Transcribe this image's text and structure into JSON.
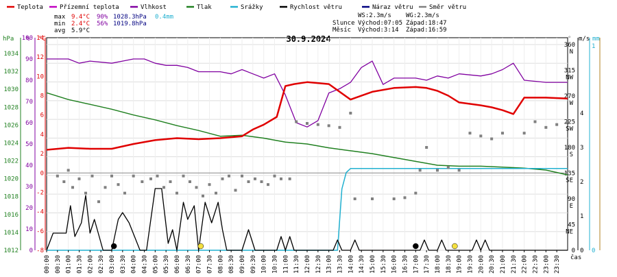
{
  "chart_data": {
    "type": "line",
    "title": "30.9.2024",
    "legend": [
      {
        "key": "temp",
        "label": "Teplota",
        "color": "#e00000"
      },
      {
        "key": "feel",
        "label": "Přízemní teplota",
        "color": "#c000c0"
      },
      {
        "key": "hum",
        "label": "Vlhkost",
        "color": "#8000a0"
      },
      {
        "key": "press",
        "label": "Tlak",
        "color": "#208020"
      },
      {
        "key": "rain",
        "label": "Srážky",
        "color": "#20b0d0"
      },
      {
        "key": "wind",
        "label": "Rychlost větru",
        "color": "#000000"
      },
      {
        "key": "gust",
        "label": "Náraz větru",
        "color": "#000080"
      },
      {
        "key": "dir",
        "label": "Směr větru",
        "color": "#808080"
      }
    ],
    "stats": {
      "rows": [
        "max",
        "min",
        "avg"
      ],
      "temp": [
        "9.4°C",
        "2.4°C",
        "5.9°C"
      ],
      "hum": [
        "90%",
        "56%",
        ""
      ],
      "press": [
        "1028.3hPa",
        "1019.8hPa",
        ""
      ],
      "rain": [
        "0.4mm",
        "",
        ""
      ]
    },
    "info": {
      "ws": "WS:2.3m/s",
      "wg": "WG:2.3m/s",
      "sun_label": "Slunce",
      "sunrise": "Východ:07:05",
      "sunset": "Západ:18:47",
      "moon_label": "Měsíc",
      "moonrise": "Východ:3:14",
      "moonset": "Západ:16:59"
    },
    "axes": {
      "hpa": {
        "unit": "hPa",
        "ticks": [
          "1034",
          "1032",
          "1030",
          "1028",
          "1026",
          "1024",
          "1022",
          "1020",
          "1018",
          "1016",
          "1014",
          "1012"
        ],
        "color": "#208020"
      },
      "pct": {
        "unit": "%",
        "ticks": [
          "100",
          "90",
          "80",
          "70",
          "60",
          "50",
          "40",
          "30",
          "20",
          "10",
          "0"
        ],
        "color": "#8000a0"
      },
      "degc": {
        "unit": "°C",
        "ticks": [
          "14",
          "12",
          "10",
          "8",
          "6",
          "4",
          "2",
          "0",
          "-2",
          "-4",
          "-6",
          "-8"
        ],
        "color": "#e00000"
      },
      "compass": {
        "ticks": [
          "360\nN",
          "315\nNW",
          "270\nW",
          "225\nSW",
          "180\nS",
          "135\nSE",
          "90\nE",
          "45\nNE",
          "0"
        ],
        "color": "#808080"
      },
      "ms": {
        "unit": "m/s",
        "ticks": [
          "4",
          "3",
          "2",
          "1",
          "0"
        ],
        "color": "#000000"
      },
      "mm": {
        "unit": "mm",
        "ticks": [
          "1",
          "0"
        ],
        "color": "#20b0d0"
      },
      "x_ticks": [
        "00:00",
        "00:30",
        "01:00",
        "01:30",
        "02:00",
        "02:30",
        "03:00",
        "03:30",
        "04:00",
        "04:30",
        "05:00",
        "05:30",
        "06:00",
        "06:30",
        "07:00",
        "07:30",
        "08:00",
        "08:30",
        "09:00",
        "09:30",
        "10:00",
        "10:30",
        "11:00",
        "11:30",
        "12:00",
        "12:30",
        "13:00",
        "13:30",
        "14:00",
        "14:30",
        "15:00",
        "15:30",
        "16:00",
        "16:30",
        "17:00",
        "17:30",
        "18:00",
        "18:30",
        "19:00",
        "19:30",
        "20:00",
        "20:30",
        "21:00",
        "21:30",
        "22:00",
        "22:30",
        "23:00",
        "23:30"
      ],
      "x_label": "čas"
    },
    "temp_ylim": [
      -8,
      14
    ],
    "x_range_h": [
      0,
      24
    ],
    "series": {
      "temp_c": [
        [
          0,
          2.4
        ],
        [
          1,
          2.6
        ],
        [
          2,
          2.5
        ],
        [
          3,
          2.5
        ],
        [
          4,
          3.0
        ],
        [
          5,
          3.4
        ],
        [
          6,
          3.6
        ],
        [
          7,
          3.5
        ],
        [
          8,
          3.6
        ],
        [
          9,
          3.8
        ],
        [
          9.5,
          4.5
        ],
        [
          10,
          5.0
        ],
        [
          10.6,
          5.8
        ],
        [
          11,
          9.0
        ],
        [
          11.4,
          9.2
        ],
        [
          12,
          9.4
        ],
        [
          13,
          9.2
        ],
        [
          14,
          7.6
        ],
        [
          15,
          8.4
        ],
        [
          16,
          8.8
        ],
        [
          17,
          8.9
        ],
        [
          17.5,
          8.8
        ],
        [
          18,
          8.5
        ],
        [
          18.5,
          8.0
        ],
        [
          19,
          7.3
        ],
        [
          20,
          7.0
        ],
        [
          20.5,
          6.8
        ],
        [
          21,
          6.5
        ],
        [
          21.5,
          6.1
        ],
        [
          22,
          7.8
        ],
        [
          23,
          7.8
        ],
        [
          24,
          7.7
        ]
      ],
      "hum_pct": [
        [
          0,
          90
        ],
        [
          1,
          90
        ],
        [
          1.5,
          88
        ],
        [
          2,
          89
        ],
        [
          3,
          88
        ],
        [
          3.5,
          89
        ],
        [
          4,
          90
        ],
        [
          4.5,
          90
        ],
        [
          5,
          88
        ],
        [
          5.5,
          87
        ],
        [
          6,
          87
        ],
        [
          6.5,
          86
        ],
        [
          7,
          84
        ],
        [
          8,
          84
        ],
        [
          8.5,
          83
        ],
        [
          9,
          85
        ],
        [
          9.5,
          83
        ],
        [
          10,
          81
        ],
        [
          10.5,
          83
        ],
        [
          11,
          73
        ],
        [
          11.5,
          60
        ],
        [
          12,
          58
        ],
        [
          12.5,
          61
        ],
        [
          13,
          74
        ],
        [
          13.5,
          76
        ],
        [
          14,
          79
        ],
        [
          14.5,
          86
        ],
        [
          15,
          89
        ],
        [
          15.5,
          78
        ],
        [
          16,
          81
        ],
        [
          17,
          81
        ],
        [
          17.5,
          80
        ],
        [
          18,
          82
        ],
        [
          18.5,
          81
        ],
        [
          19,
          83
        ],
        [
          20,
          82
        ],
        [
          20.5,
          83
        ],
        [
          21,
          85
        ],
        [
          21.5,
          88
        ],
        [
          22,
          80
        ],
        [
          23,
          79
        ],
        [
          24,
          79
        ]
      ],
      "press_hpa": [
        [
          0,
          1028.3
        ],
        [
          1,
          1027.6
        ],
        [
          2,
          1027.1
        ],
        [
          3,
          1026.6
        ],
        [
          4,
          1026.0
        ],
        [
          5,
          1025.5
        ],
        [
          6,
          1024.9
        ],
        [
          7,
          1024.4
        ],
        [
          8,
          1023.8
        ],
        [
          9,
          1023.9
        ],
        [
          10,
          1023.6
        ],
        [
          11,
          1023.2
        ],
        [
          12,
          1023.0
        ],
        [
          13,
          1022.6
        ],
        [
          14,
          1022.3
        ],
        [
          15,
          1022.0
        ],
        [
          16,
          1021.6
        ],
        [
          17,
          1021.2
        ],
        [
          18,
          1020.8
        ],
        [
          19,
          1020.7
        ],
        [
          20,
          1020.7
        ],
        [
          21,
          1020.6
        ],
        [
          22,
          1020.5
        ],
        [
          23,
          1020.3
        ],
        [
          24,
          1019.8
        ]
      ],
      "rain_mm": [
        [
          0,
          0
        ],
        [
          13.4,
          0
        ],
        [
          13.6,
          0.3
        ],
        [
          13.8,
          0.38
        ],
        [
          14,
          0.4
        ],
        [
          24,
          0.4
        ]
      ],
      "wind_ms": [
        [
          0,
          0
        ],
        [
          0.3,
          0.5
        ],
        [
          0.7,
          0.5
        ],
        [
          0.9,
          0.5
        ],
        [
          1.1,
          1.3
        ],
        [
          1.3,
          0.4
        ],
        [
          1.6,
          0.8
        ],
        [
          1.8,
          1.6
        ],
        [
          2.0,
          0.5
        ],
        [
          2.2,
          0.9
        ],
        [
          2.6,
          0
        ],
        [
          3.0,
          0
        ],
        [
          3.3,
          0.9
        ],
        [
          3.5,
          1.1
        ],
        [
          3.8,
          0.8
        ],
        [
          4.3,
          0
        ],
        [
          4.6,
          0
        ],
        [
          5.0,
          1.8
        ],
        [
          5.3,
          1.8
        ],
        [
          5.6,
          0.2
        ],
        [
          5.8,
          0.6
        ],
        [
          6.0,
          0
        ],
        [
          6.3,
          1.4
        ],
        [
          6.5,
          0.9
        ],
        [
          6.8,
          1.3
        ],
        [
          7.0,
          0
        ],
        [
          7.3,
          1.4
        ],
        [
          7.6,
          0.8
        ],
        [
          7.9,
          1.4
        ],
        [
          8.1,
          0.6
        ],
        [
          8.3,
          0
        ],
        [
          9.0,
          0
        ],
        [
          9.3,
          0.6
        ],
        [
          9.6,
          0
        ],
        [
          10.6,
          0
        ],
        [
          10.8,
          0.4
        ],
        [
          11.0,
          0
        ],
        [
          11.2,
          0.4
        ],
        [
          11.4,
          0
        ],
        [
          13.2,
          0
        ],
        [
          13.4,
          0.3
        ],
        [
          13.6,
          0
        ],
        [
          14.0,
          0
        ],
        [
          14.2,
          0.3
        ],
        [
          14.4,
          0
        ],
        [
          17.2,
          0
        ],
        [
          17.4,
          0.3
        ],
        [
          17.6,
          0
        ],
        [
          18.0,
          0
        ],
        [
          18.2,
          0.3
        ],
        [
          18.4,
          0
        ],
        [
          19.6,
          0
        ],
        [
          19.8,
          0.3
        ],
        [
          20.0,
          0
        ],
        [
          20.2,
          0.3
        ],
        [
          20.4,
          0
        ],
        [
          24,
          0
        ]
      ],
      "dir_points_deg": [
        [
          0.5,
          130
        ],
        [
          0.8,
          120
        ],
        [
          1.0,
          140
        ],
        [
          1.2,
          110
        ],
        [
          1.5,
          125
        ],
        [
          1.8,
          100
        ],
        [
          2.1,
          130
        ],
        [
          2.4,
          85
        ],
        [
          2.7,
          110
        ],
        [
          3.0,
          130
        ],
        [
          3.3,
          115
        ],
        [
          3.6,
          100
        ],
        [
          4.0,
          130
        ],
        [
          4.4,
          120
        ],
        [
          4.8,
          125
        ],
        [
          5.1,
          130
        ],
        [
          5.4,
          110
        ],
        [
          5.7,
          120
        ],
        [
          6.0,
          100
        ],
        [
          6.3,
          130
        ],
        [
          6.6,
          120
        ],
        [
          6.9,
          110
        ],
        [
          7.2,
          95
        ],
        [
          7.5,
          115
        ],
        [
          7.8,
          100
        ],
        [
          8.1,
          125
        ],
        [
          8.4,
          130
        ],
        [
          8.7,
          105
        ],
        [
          9.0,
          130
        ],
        [
          9.3,
          120
        ],
        [
          9.6,
          125
        ],
        [
          9.9,
          120
        ],
        [
          10.2,
          115
        ],
        [
          10.5,
          130
        ],
        [
          10.8,
          125
        ],
        [
          11.2,
          125
        ],
        [
          11.5,
          225
        ],
        [
          12,
          222
        ],
        [
          12.5,
          220
        ],
        [
          13,
          218
        ],
        [
          13.5,
          215
        ],
        [
          14.0,
          240
        ],
        [
          14.2,
          90
        ],
        [
          15,
          90
        ],
        [
          16,
          90
        ],
        [
          16.5,
          92
        ],
        [
          17.0,
          100
        ],
        [
          17.2,
          140
        ],
        [
          17.5,
          180
        ],
        [
          18,
          140
        ],
        [
          18.5,
          145
        ],
        [
          19,
          140
        ],
        [
          19.5,
          205
        ],
        [
          20,
          200
        ],
        [
          20.5,
          195
        ],
        [
          21,
          205
        ],
        [
          22,
          205
        ],
        [
          22.5,
          225
        ],
        [
          23,
          215
        ],
        [
          23.5,
          220
        ],
        [
          24,
          225
        ]
      ],
      "events": [
        {
          "t": 3.1,
          "type": "moonrise"
        },
        {
          "t": 7.1,
          "type": "sunrise"
        },
        {
          "t": 17.0,
          "type": "moonset"
        },
        {
          "t": 18.8,
          "type": "sunset"
        }
      ]
    }
  }
}
